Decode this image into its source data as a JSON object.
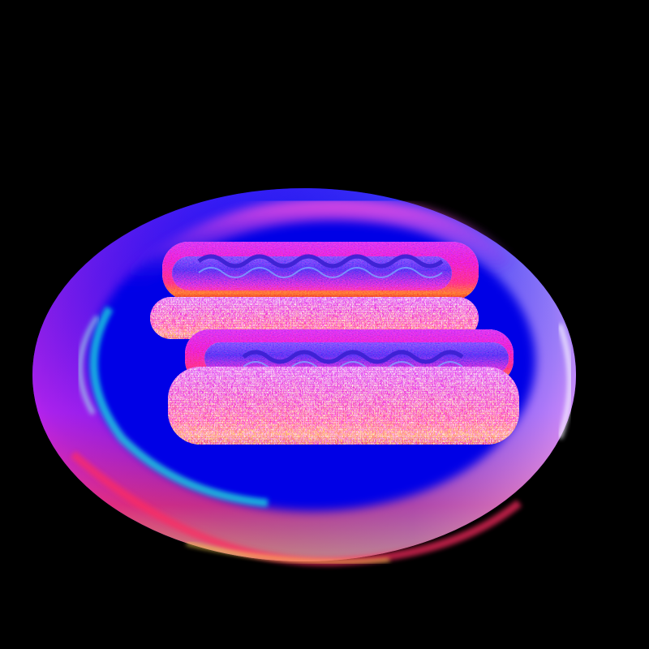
{
  "scene": {
    "subject": "plate-with-hot-dogs",
    "render_style": "surface-normal-map",
    "hot_dog_count": 2,
    "colors": {
      "background": "#000000",
      "plate_main": "#0a00e8",
      "plate_rim_pink": "#ff40d0",
      "plate_rim_cyan": "#20e8d8",
      "plate_edge_yellow": "#ffd060",
      "bun_magenta": "#e020c8",
      "bun_orange": "#ff7040",
      "bun_yellow": "#ffd040",
      "sausage_blue": "#5040f0"
    }
  }
}
